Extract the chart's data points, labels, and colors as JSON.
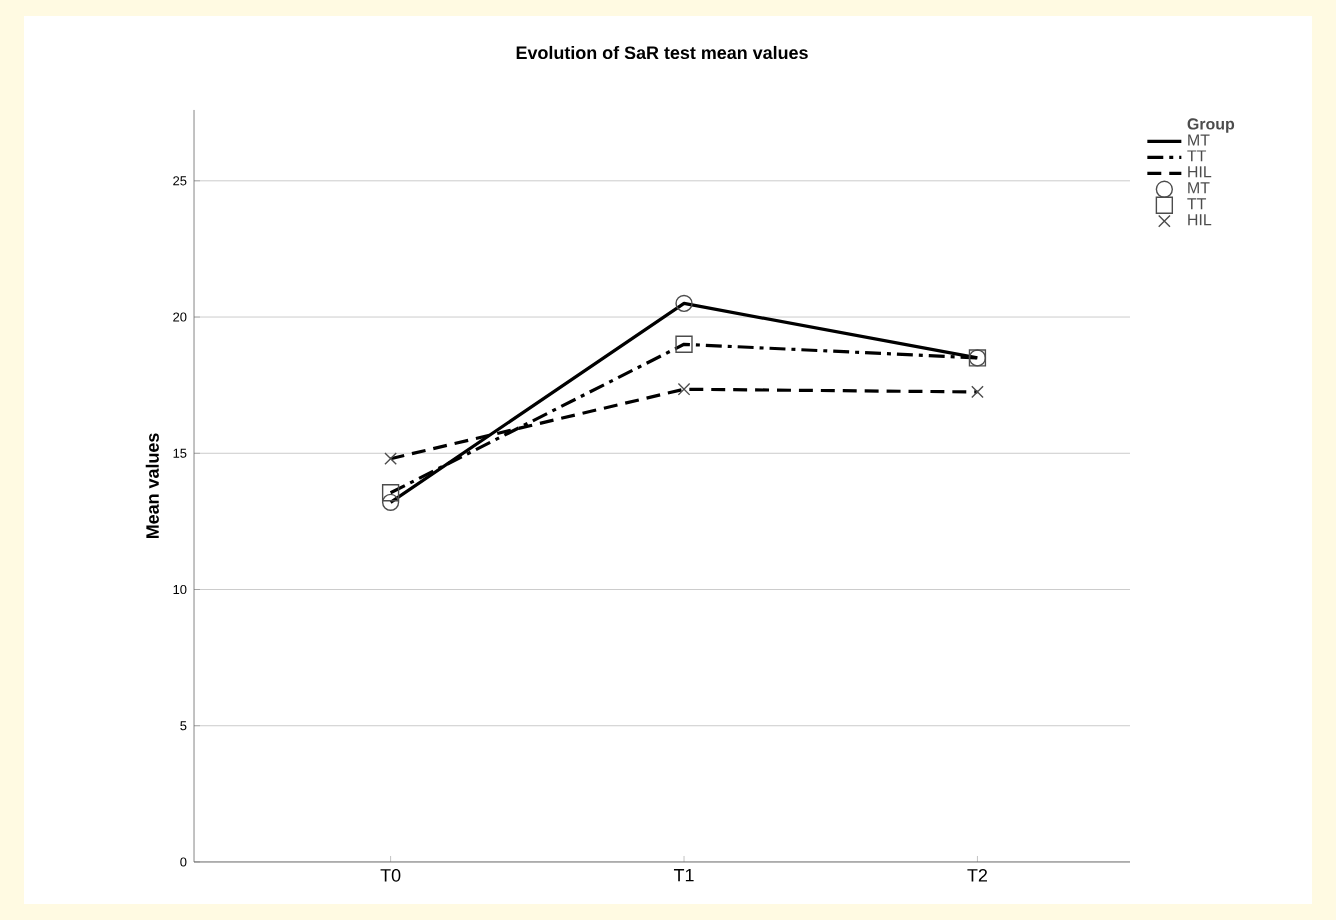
{
  "chart_data": {
    "type": "line",
    "title": "Evolution of SaR test mean values",
    "ylabel": "Mean values",
    "legend_title": "Group",
    "categories": [
      "T0",
      "T1",
      "T2"
    ],
    "series": [
      {
        "name": "MT",
        "color": "#000000",
        "line_style": "solid",
        "marker": "circle",
        "values": [
          13.2,
          20.5,
          18.5
        ]
      },
      {
        "name": "TT",
        "color": "#000000",
        "line_style": "dashdotted",
        "marker": "square",
        "values": [
          13.55,
          19.0,
          18.5
        ]
      },
      {
        "name": "HIL",
        "color": "#000000",
        "line_style": "dashed",
        "marker": "cross",
        "values": [
          14.8,
          17.35,
          17.25
        ]
      }
    ],
    "ylim": [
      0,
      27.6
    ],
    "yticks": [
      0,
      5,
      10,
      15,
      20,
      25
    ],
    "grid": "y",
    "legend": "right"
  }
}
